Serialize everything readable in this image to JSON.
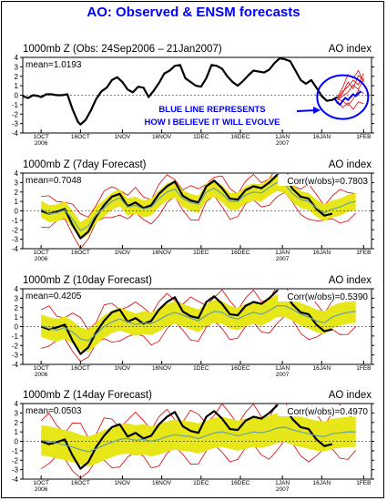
{
  "title": "AO: Observed & ENSM forecasts",
  "colors": {
    "title": "#0000ff",
    "observed": "#000000",
    "ensemble_band": "#e6e619",
    "ensemble_mean": "#69a0a0",
    "spread": "#dd0000",
    "annotation": "#0000ff"
  },
  "annotation": {
    "line1": "BLUE LINE REPRESENTS",
    "line2": "HOW I BELIEVE IT WILL EVOLVE"
  },
  "x_ticks": [
    {
      "label": "1OCT",
      "sub": "2006",
      "day": 0
    },
    {
      "label": "16OCT",
      "sub": "",
      "day": 15
    },
    {
      "label": "1NOV",
      "sub": "",
      "day": 31
    },
    {
      "label": "16NOV",
      "sub": "",
      "day": 46
    },
    {
      "label": "1DEC",
      "sub": "",
      "day": 61
    },
    {
      "label": "16DEC",
      "sub": "",
      "day": 76
    },
    {
      "label": "1JAN",
      "sub": "2007",
      "day": 92
    },
    {
      "label": "16JAN",
      "sub": "",
      "day": 107
    },
    {
      "label": "1FEB",
      "sub": "",
      "day": 123
    }
  ],
  "chart_data": [
    {
      "type": "line",
      "title": "1000mb Z (Obs: 24Sep2006 – 21Jan2007)",
      "right_title": "AO index",
      "mean_label": "mean=1.0193",
      "corr_label": "",
      "ylim": [
        -4,
        4
      ],
      "yticks": [
        4,
        3,
        2,
        1,
        0,
        -1,
        -2,
        -3,
        -4
      ],
      "has_band": false,
      "has_spread": true,
      "series": [
        {
          "role": "observed",
          "x": [
            -7,
            -5,
            -3,
            -1,
            0,
            2,
            4,
            6,
            8,
            10,
            12,
            14,
            15,
            17,
            19,
            21,
            23,
            25,
            27,
            29,
            31,
            33,
            35,
            37,
            39,
            41,
            43,
            45,
            47,
            49,
            51,
            53,
            55,
            57,
            59,
            61,
            63,
            65,
            67,
            69,
            71,
            73,
            75,
            77,
            79,
            81,
            83,
            85,
            87,
            89,
            91,
            93,
            95,
            97,
            99,
            101,
            103,
            105,
            107,
            109,
            111,
            113
          ],
          "y": [
            -0.1,
            -0.3,
            0,
            -0.1,
            -0.2,
            0.1,
            0.1,
            0,
            0,
            0.1,
            -1.5,
            -2.8,
            -3.1,
            -2.6,
            -1.6,
            -0.4,
            0.4,
            0.8,
            1.6,
            1.9,
            1.4,
            0.6,
            0.3,
            0.9,
            0.8,
            -0.2,
            0.5,
            1.3,
            2.3,
            2.6,
            3.1,
            3.2,
            1.8,
            1.4,
            1.0,
            0.9,
            1.8,
            3.2,
            3.1,
            2.8,
            2.0,
            1.4,
            1.0,
            1.5,
            2.1,
            2.6,
            2.5,
            2.4,
            2.7,
            3.4,
            3.9,
            3.8,
            3.6,
            2.6,
            1.6,
            1.2,
            1.6,
            0.8,
            -0.1,
            -0.6,
            -0.5,
            -0.2
          ]
        },
        {
          "role": "forecast_blue",
          "x": [
            112,
            113,
            114,
            115,
            116,
            117,
            118,
            119,
            120,
            121,
            122
          ],
          "y": [
            -0.4,
            -0.8,
            -1.0,
            -0.6,
            -0.3,
            -0.5,
            -0.2,
            0.1,
            -0.1,
            0.2,
            0.4
          ]
        }
      ],
      "spread_lines": [
        {
          "x": [
            113,
            115,
            117,
            119,
            121,
            123
          ],
          "y": [
            -0.3,
            0.4,
            0.9,
            1.6,
            1.1,
            2.3
          ]
        },
        {
          "x": [
            113,
            115,
            117,
            119,
            121,
            123
          ],
          "y": [
            -0.5,
            0.2,
            1.4,
            0.7,
            2.1,
            1.6
          ]
        },
        {
          "x": [
            113,
            115,
            117,
            119,
            121,
            123
          ],
          "y": [
            -0.4,
            -0.6,
            -1.1,
            -0.4,
            0.5,
            0.2
          ]
        },
        {
          "x": [
            113,
            115,
            117,
            119,
            121,
            123
          ],
          "y": [
            -0.6,
            -1.3,
            -0.8,
            -1.5,
            -0.7,
            -0.9
          ]
        },
        {
          "x": [
            113,
            115,
            117,
            119,
            121,
            123
          ],
          "y": [
            -0.2,
            0.8,
            2.2,
            1.8,
            2.6,
            1.4
          ]
        },
        {
          "x": [
            113,
            115,
            117,
            119,
            121,
            123
          ],
          "y": [
            -0.5,
            -0.1,
            0.3,
            1.1,
            0.6,
            1.8
          ]
        }
      ]
    },
    {
      "type": "line",
      "title": "1000mb Z (7day Forecast)",
      "right_title": "AO index",
      "mean_label": "mean=0.7048",
      "corr_label": "Corr(w/obs)=0.7803",
      "ylim": [
        -4,
        4
      ],
      "yticks": [
        4,
        3,
        2,
        1,
        0,
        -1,
        -2,
        -3,
        -4
      ],
      "has_band": true,
      "has_spread": true,
      "series": [
        {
          "role": "observed",
          "x": [
            0,
            3,
            6,
            9,
            12,
            15,
            18,
            21,
            24,
            27,
            30,
            33,
            36,
            39,
            42,
            45,
            48,
            51,
            54,
            57,
            60,
            63,
            66,
            69,
            72,
            75,
            78,
            81,
            84,
            87,
            90,
            93,
            96,
            99,
            102,
            105,
            108,
            111
          ],
          "y": [
            0,
            -0.3,
            -0.1,
            0.2,
            -1.5,
            -2.9,
            -2.2,
            -0.6,
            0.6,
            1.5,
            1.8,
            0.5,
            0.9,
            0.3,
            0.6,
            1.8,
            2.6,
            3.1,
            1.6,
            1.1,
            0.9,
            2.6,
            3.2,
            2.4,
            1.3,
            1.2,
            2.2,
            2.6,
            2.4,
            3.0,
            3.8,
            3.5,
            2.3,
            1.5,
            1.3,
            0.2,
            -0.5,
            -0.3
          ]
        },
        {
          "role": "mean",
          "x": [
            0,
            3,
            6,
            9,
            12,
            15,
            18,
            21,
            24,
            27,
            30,
            33,
            36,
            39,
            42,
            45,
            48,
            51,
            54,
            57,
            60,
            63,
            66,
            69,
            72,
            75,
            78,
            81,
            84,
            87,
            90,
            93,
            96,
            99,
            102,
            105,
            108,
            111,
            114,
            117,
            120
          ],
          "y": [
            0.2,
            -0.3,
            -0.2,
            0.1,
            -0.9,
            -2.1,
            -1.6,
            -0.4,
            0.3,
            1.0,
            1.4,
            0.4,
            0.6,
            0.2,
            0.4,
            1.3,
            2.0,
            2.3,
            1.3,
            0.9,
            0.7,
            2.0,
            2.4,
            1.8,
            1.0,
            1.0,
            1.7,
            2.0,
            1.9,
            2.5,
            3.0,
            2.8,
            1.8,
            1.2,
            1.0,
            0.3,
            -0.2,
            0.2,
            0.4,
            0.8,
            1.0
          ]
        }
      ],
      "band_half_width": 0.9,
      "spread_half_width": 1.9
    },
    {
      "type": "line",
      "title": "1000mb Z (10day Forecast)",
      "right_title": "AO index",
      "mean_label": "mean=0.4205",
      "corr_label": "Corr(w/obs)=0.5390",
      "ylim": [
        -4,
        4
      ],
      "yticks": [
        4,
        3,
        2,
        1,
        0,
        -1,
        -2,
        -3,
        -4
      ],
      "has_band": true,
      "has_spread": true,
      "series": [
        {
          "role": "observed",
          "x": [
            0,
            3,
            6,
            9,
            12,
            15,
            18,
            21,
            24,
            27,
            30,
            33,
            36,
            39,
            42,
            45,
            48,
            51,
            54,
            57,
            60,
            63,
            66,
            69,
            72,
            75,
            78,
            81,
            84,
            87,
            90,
            93,
            96,
            99,
            102,
            105,
            108,
            111
          ],
          "y": [
            0,
            -0.3,
            -0.1,
            0.2,
            -1.5,
            -2.9,
            -2.2,
            -0.6,
            0.6,
            1.5,
            1.8,
            0.5,
            0.9,
            0.3,
            0.6,
            1.8,
            2.6,
            3.1,
            1.6,
            1.1,
            0.9,
            2.6,
            3.2,
            2.4,
            1.3,
            1.2,
            2.2,
            2.6,
            2.4,
            3.0,
            3.8,
            3.5,
            2.3,
            1.5,
            1.3,
            0.2,
            -0.5,
            -0.3
          ]
        },
        {
          "role": "mean",
          "x": [
            0,
            3,
            6,
            9,
            12,
            15,
            18,
            21,
            24,
            27,
            30,
            33,
            36,
            39,
            42,
            45,
            48,
            51,
            54,
            57,
            60,
            63,
            66,
            69,
            72,
            75,
            78,
            81,
            84,
            87,
            90,
            93,
            96,
            99,
            102,
            105,
            108,
            111,
            114,
            117,
            120
          ],
          "y": [
            0.1,
            -0.2,
            -0.4,
            -0.1,
            -0.6,
            -1.3,
            -1.5,
            -0.8,
            0,
            0.5,
            0.8,
            0.5,
            0.2,
            0.4,
            0.3,
            0.7,
            1.2,
            1.5,
            1.2,
            0.9,
            0.6,
            1.2,
            1.6,
            1.5,
            1.0,
            0.8,
            1.2,
            1.5,
            1.3,
            1.7,
            2.2,
            2.2,
            1.8,
            1.3,
            1.0,
            0.6,
            0.4,
            1.0,
            1.3,
            1.5,
            1.6
          ]
        }
      ],
      "band_half_width": 1.2,
      "spread_half_width": 2.4
    },
    {
      "type": "line",
      "title": "1000mb Z (14day Forecast)",
      "right_title": "AO index",
      "mean_label": "mean=0.0503",
      "corr_label": "Corr(w/obs)=0.4970",
      "ylim": [
        -4,
        4
      ],
      "yticks": [
        4,
        3,
        2,
        1,
        0,
        -1,
        -2,
        -3,
        -4
      ],
      "has_band": true,
      "has_spread": true,
      "series": [
        {
          "role": "observed",
          "x": [
            0,
            3,
            6,
            9,
            12,
            15,
            18,
            21,
            24,
            27,
            30,
            33,
            36,
            39,
            42,
            45,
            48,
            51,
            54,
            57,
            60,
            63,
            66,
            69,
            72,
            75,
            78,
            81,
            84,
            87,
            90,
            93,
            96,
            99,
            102,
            105,
            108,
            111
          ],
          "y": [
            0,
            -0.3,
            -0.1,
            0.2,
            -1.5,
            -2.9,
            -2.2,
            -0.6,
            0.6,
            1.5,
            1.8,
            0.5,
            0.9,
            0.3,
            0.6,
            1.8,
            2.6,
            3.1,
            1.6,
            1.1,
            0.9,
            2.6,
            3.2,
            2.4,
            1.3,
            1.2,
            2.2,
            2.6,
            2.4,
            3.0,
            3.8,
            3.5,
            2.3,
            1.5,
            1.3,
            0.2,
            -0.5,
            -0.3
          ]
        },
        {
          "role": "mean",
          "x": [
            0,
            3,
            6,
            9,
            12,
            15,
            18,
            21,
            24,
            27,
            30,
            33,
            36,
            39,
            42,
            45,
            48,
            51,
            54,
            57,
            60,
            63,
            66,
            69,
            72,
            75,
            78,
            81,
            84,
            87,
            90,
            93,
            96,
            99,
            102,
            105,
            108,
            111,
            114,
            117,
            120
          ],
          "y": [
            0.1,
            0,
            -0.2,
            -0.4,
            -0.6,
            -0.9,
            -1.1,
            -0.8,
            -0.4,
            -0.1,
            0.2,
            0.3,
            0.1,
            0.2,
            0,
            0.2,
            0.5,
            0.7,
            0.6,
            0.5,
            0.3,
            0.6,
            0.9,
            1.0,
            0.8,
            0.6,
            0.8,
            1.0,
            0.9,
            1.1,
            1.4,
            1.5,
            1.2,
            1.0,
            0.8,
            0.6,
            0.5,
            0.8,
            0.9,
            1.0,
            1.0
          ]
        }
      ],
      "band_half_width": 1.6,
      "spread_half_width": 3.0
    }
  ]
}
